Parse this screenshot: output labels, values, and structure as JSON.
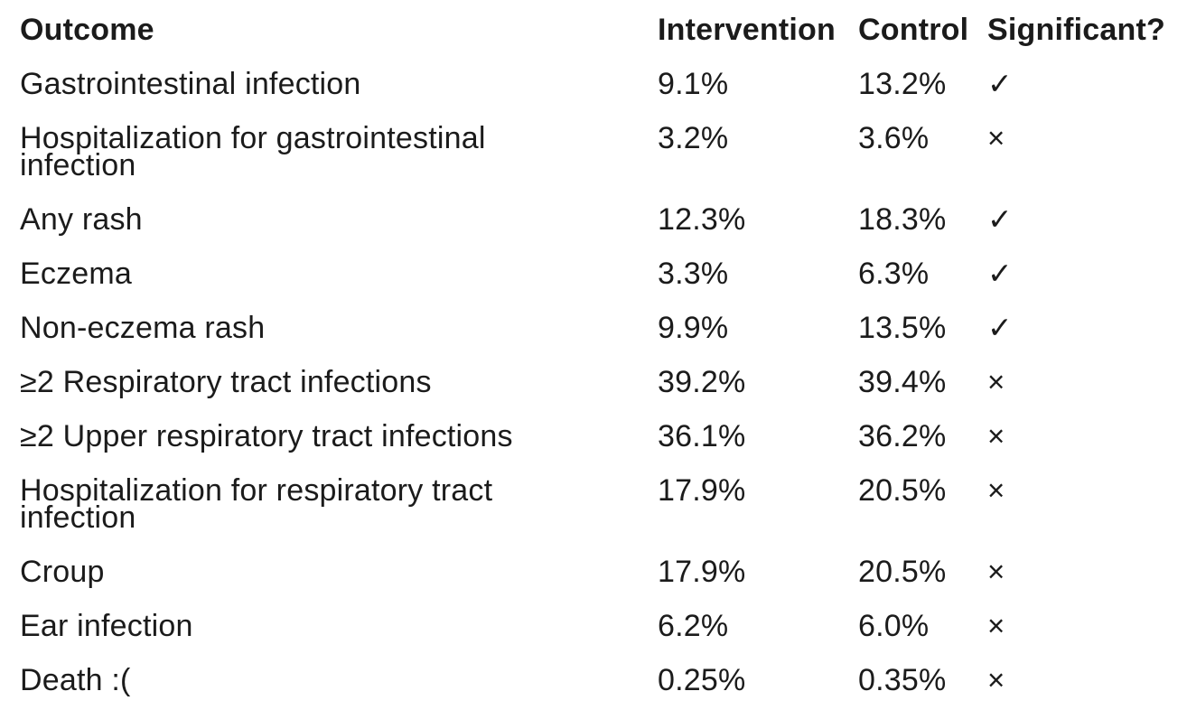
{
  "chart_data": {
    "type": "table",
    "columns": [
      "Outcome",
      "Intervention",
      "Control",
      "Significant?"
    ],
    "rows": [
      {
        "outcome": "Gastrointestinal infection",
        "intervention": "9.1%",
        "control": "13.2%",
        "significant": true,
        "significant_glyph": "✓"
      },
      {
        "outcome": "Hospitalization for gastrointestinal\ninfection",
        "intervention": "3.2%",
        "control": "3.6%",
        "significant": false,
        "significant_glyph": "×"
      },
      {
        "outcome": "Any rash",
        "intervention": "12.3%",
        "control": "18.3%",
        "significant": true,
        "significant_glyph": "✓"
      },
      {
        "outcome": "Eczema",
        "intervention": "3.3%",
        "control": "6.3%",
        "significant": true,
        "significant_glyph": "✓"
      },
      {
        "outcome": "Non-eczema rash",
        "intervention": "9.9%",
        "control": "13.5%",
        "significant": true,
        "significant_glyph": "✓"
      },
      {
        "outcome": "≥2 Respiratory tract infections",
        "intervention": "39.2%",
        "control": "39.4%",
        "significant": false,
        "significant_glyph": "×"
      },
      {
        "outcome": "≥2 Upper respiratory tract infections",
        "intervention": "36.1%",
        "control": "36.2%",
        "significant": false,
        "significant_glyph": "×"
      },
      {
        "outcome": "Hospitalization for respiratory tract\ninfection",
        "intervention": "17.9%",
        "control": "20.5%",
        "significant": false,
        "significant_glyph": "×"
      },
      {
        "outcome": "Croup",
        "intervention": "17.9%",
        "control": "20.5%",
        "significant": false,
        "significant_glyph": "×"
      },
      {
        "outcome": "Ear infection",
        "intervention": "6.2%",
        "control": "6.0%",
        "significant": false,
        "significant_glyph": "×"
      },
      {
        "outcome": "Death :(",
        "intervention": "0.25%",
        "control": "0.35%",
        "significant": false,
        "significant_glyph": "×"
      }
    ]
  },
  "icons": {
    "check": "✓",
    "cross": "×"
  },
  "colors": {
    "text": "#1b1b1b",
    "background": "#ffffff"
  }
}
